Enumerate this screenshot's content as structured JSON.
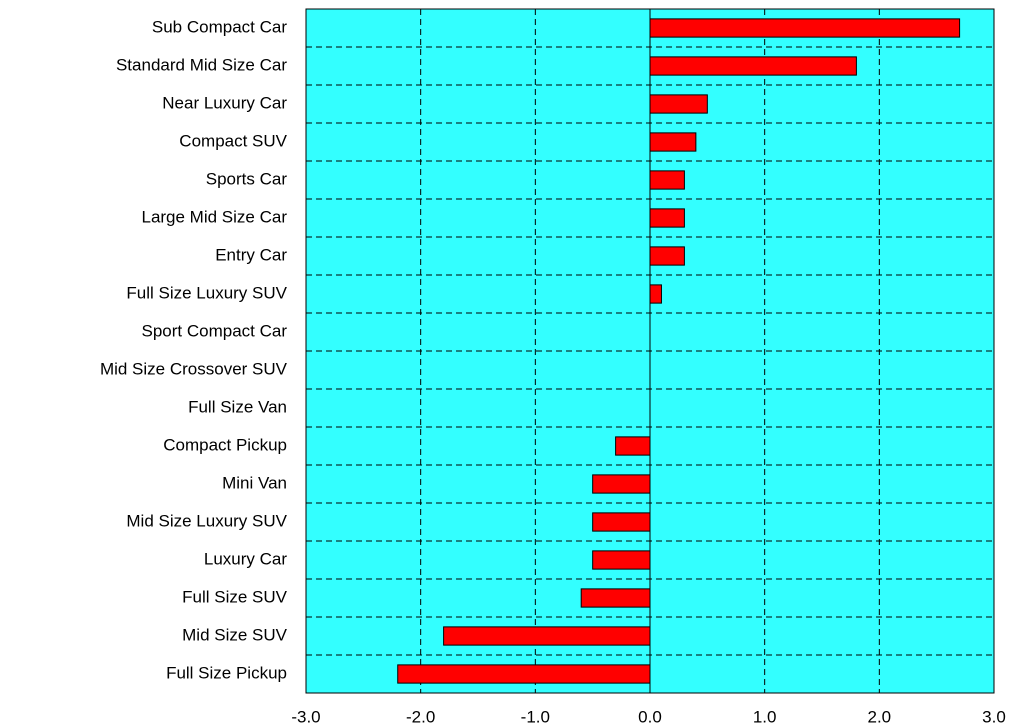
{
  "chart_data": {
    "type": "barh",
    "categories": [
      "Sub Compact Car",
      "Standard Mid Size Car",
      "Near Luxury Car",
      "Compact SUV",
      "Sports Car",
      "Large Mid Size Car",
      "Entry Car",
      "Full Size Luxury SUV",
      "Sport Compact Car",
      "Mid Size Crossover SUV",
      "Full Size Van",
      "Compact Pickup",
      "Mini Van",
      "Mid Size Luxury SUV",
      "Luxury Car",
      "Full Size SUV",
      "Mid Size SUV",
      "Full Size Pickup"
    ],
    "values": [
      2.7,
      1.8,
      0.5,
      0.4,
      0.3,
      0.3,
      0.3,
      0.1,
      0,
      0,
      0,
      -0.3,
      -0.5,
      -0.5,
      -0.5,
      -0.6,
      -1.8,
      -2.2
    ],
    "color": "#ff0000",
    "background": "#33ffff",
    "xlim": [
      -3,
      3
    ],
    "xticks": [
      {
        "value": -3,
        "label": "-3.0"
      },
      {
        "value": -2,
        "label": "-2.0"
      },
      {
        "value": -1,
        "label": "-1.0"
      },
      {
        "value": 0,
        "label": "0.0"
      },
      {
        "value": 1,
        "label": "1.0"
      },
      {
        "value": 2,
        "label": "2.0"
      },
      {
        "value": 3,
        "label": "3.0"
      }
    ],
    "grid": true
  }
}
